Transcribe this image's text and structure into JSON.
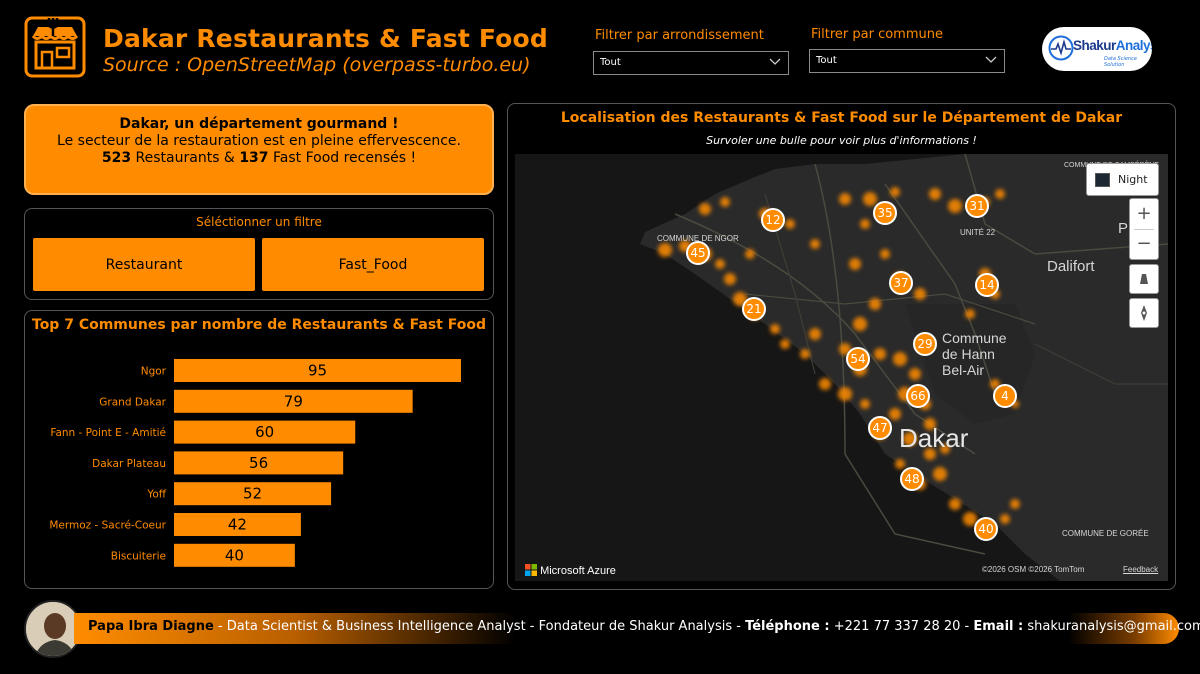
{
  "header": {
    "title": "Dakar Restaurants & Fast Food",
    "subtitle": "Source : OpenStreetMap (overpass-turbo.eu)"
  },
  "filters": {
    "arrondissement_label": "Filtrer par arrondissement",
    "arrondissement_value": "Tout",
    "commune_label": "Filtrer par commune",
    "commune_value": "Tout"
  },
  "brand": {
    "name_part1": "Shakur",
    "name_part2": "Analysis",
    "tagline": "Data Science Solution"
  },
  "banner": {
    "headline": "Dakar, un département gourmand !",
    "line2": "Le secteur de la restauration est en pleine effervescence.",
    "restaurants_count": "523",
    "restaurants_label": "Restaurants &",
    "fastfood_count": "137",
    "fastfood_label": "Fast Food recensés !"
  },
  "slicer": {
    "title": "Séléctionner un filtre",
    "options": [
      "Restaurant",
      "Fast_Food"
    ]
  },
  "chart_data": {
    "type": "bar",
    "title": "Top 7 Communes par nombre de Restaurants & Fast Food",
    "categories": [
      "Ngor",
      "Grand Dakar",
      "Fann - Point E - Amitié",
      "Dakar Plateau",
      "Yoff",
      "Mermoz - Sacré-Coeur",
      "Biscuiterie"
    ],
    "values": [
      95,
      79,
      60,
      56,
      52,
      42,
      40
    ],
    "xlim": [
      0,
      95
    ],
    "xlabel": "",
    "ylabel": "",
    "color": "#ff8c00"
  },
  "map": {
    "title": "Localisation des Restaurants & Fast Food sur le Département de Dakar",
    "subtitle": "Survoler une bulle pour voir plus d'informations !",
    "style_button": "Night",
    "labels": {
      "cambrene": "COMMUNE DE CAMBÉRÈNE",
      "ngor": "COMMUNE DE NGOR",
      "unite22": "UNITÉ 22",
      "pikine": "Pikine",
      "dalifort": "Dalifort",
      "hann": "Commune de Hann Bel-Air",
      "dakar": "Dakar",
      "goree": "COMMUNE DE GORÉE"
    },
    "clusters": [
      "12",
      "35",
      "31",
      "45",
      "37",
      "14",
      "21",
      "29",
      "54",
      "66",
      "4",
      "47",
      "48",
      "40"
    ],
    "attribution": "©2026 OSM  ©2026 TomTom",
    "feedback": "Feedback",
    "provider": "Microsoft Azure"
  },
  "footer": {
    "name": "Papa Ibra Diagne",
    "role": " - Data Scientist & Business Intelligence Analyst - Fondateur de Shakur Analysis - ",
    "phone_label": "Téléphone :",
    "phone": " +221 77 337 28 20 - ",
    "email_label": "Email :",
    "email": " shakuranalysis@gmail.com"
  },
  "colors": {
    "accent": "#ff8c00",
    "background": "#000000",
    "map_bg": "#1c1c1c"
  }
}
